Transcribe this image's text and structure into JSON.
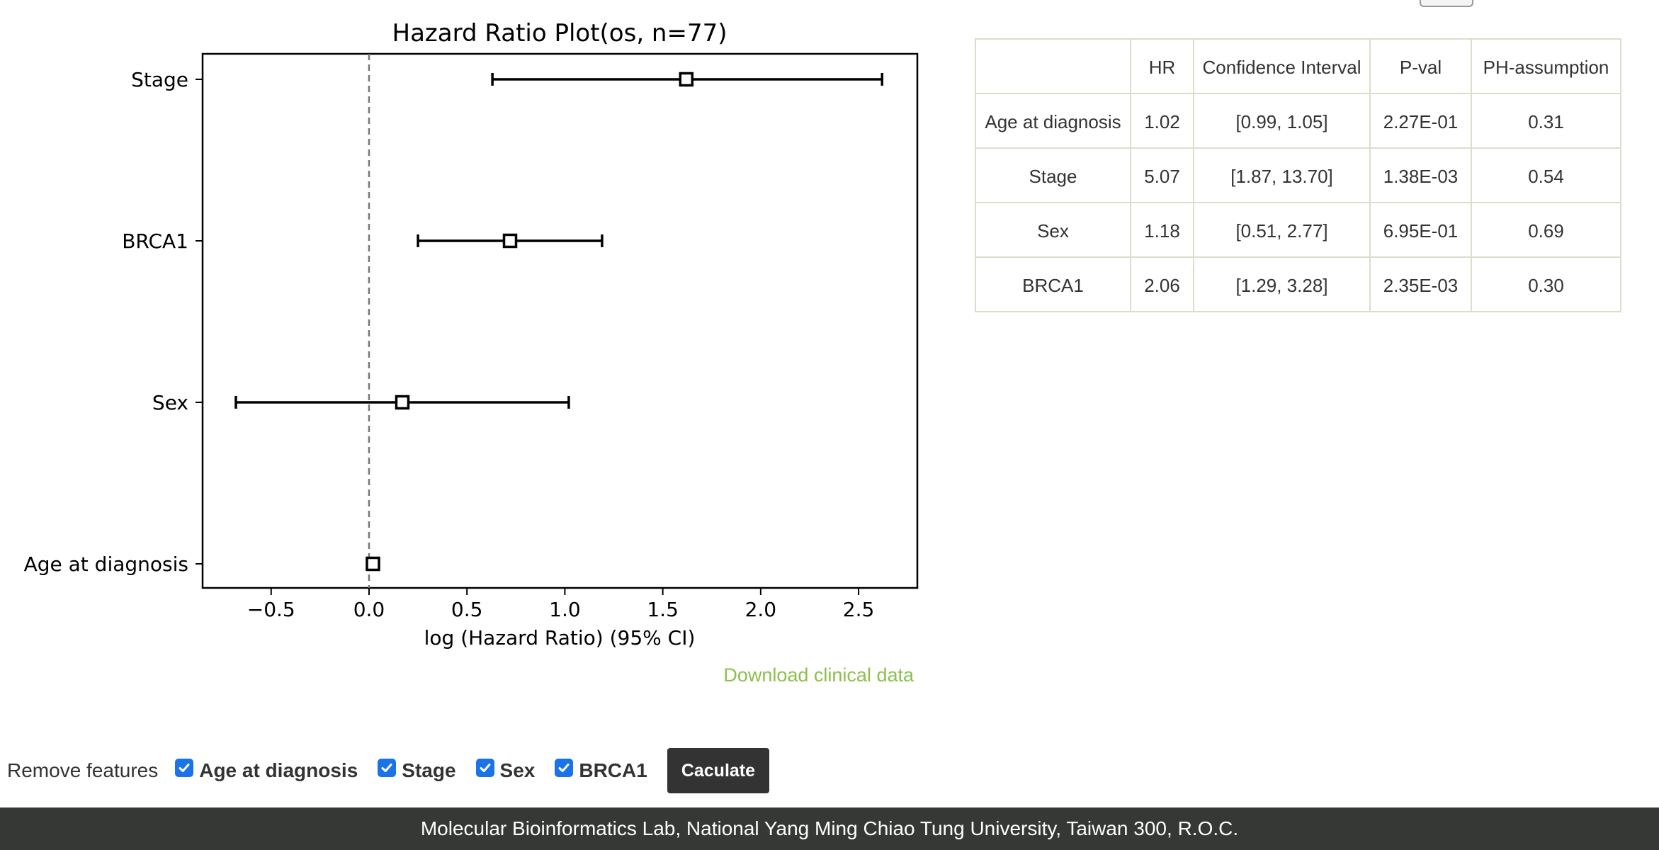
{
  "chart_data": {
    "type": "forest",
    "title": "Hazard Ratio Plot(os, n=77)",
    "xlabel": "log (Hazard Ratio) (95% CI)",
    "ylabel": "",
    "xlim": [
      -0.85,
      2.8
    ],
    "xticks": [
      -0.5,
      0.0,
      0.5,
      1.0,
      1.5,
      2.0,
      2.5
    ],
    "xtick_labels": [
      "−0.5",
      "0.0",
      "0.5",
      "1.0",
      "1.5",
      "2.0",
      "2.5"
    ],
    "reference_line": 0.0,
    "grid": false,
    "rows": [
      {
        "label": "Stage",
        "value": 1.62,
        "lower": 0.63,
        "upper": 2.62
      },
      {
        "label": "BRCA1",
        "value": 0.72,
        "lower": 0.25,
        "upper": 1.19
      },
      {
        "label": "Sex",
        "value": 0.17,
        "lower": -0.68,
        "upper": 1.02
      },
      {
        "label": "Age at diagnosis",
        "value": 0.02,
        "lower": -0.01,
        "upper": 0.05
      }
    ]
  },
  "download_link": "Download clinical data",
  "table": {
    "headers": [
      "",
      "HR",
      "Confidence Interval",
      "P-val",
      "PH-assumption"
    ],
    "rows": [
      {
        "feature": "Age at diagnosis",
        "hr": "1.02",
        "ci": "[0.99, 1.05]",
        "pval": "2.27E-01",
        "ph": "0.31"
      },
      {
        "feature": "Stage",
        "hr": "5.07",
        "ci": "[1.87, 13.70]",
        "pval": "1.38E-03",
        "ph": "0.54"
      },
      {
        "feature": "Sex",
        "hr": "1.18",
        "ci": "[0.51, 2.77]",
        "pval": "6.95E-01",
        "ph": "0.69"
      },
      {
        "feature": "BRCA1",
        "hr": "2.06",
        "ci": "[1.29, 3.28]",
        "pval": "2.35E-03",
        "ph": "0.30"
      }
    ]
  },
  "controls": {
    "remove_label": "Remove features",
    "features": [
      {
        "label": "Age at diagnosis",
        "checked": true
      },
      {
        "label": "Stage",
        "checked": true
      },
      {
        "label": "Sex",
        "checked": true
      },
      {
        "label": "BRCA1",
        "checked": true
      }
    ],
    "button_label": "Caculate"
  },
  "footer": {
    "text": "Molecular Bioinformatics Lab, National Yang Ming Chiao Tung University, Taiwan 300, R.O.C."
  },
  "colors": {
    "accent_link": "#8dc04b",
    "checkbox": "#1a73e8",
    "footer_bg": "#363836",
    "button_bg": "#333333"
  }
}
